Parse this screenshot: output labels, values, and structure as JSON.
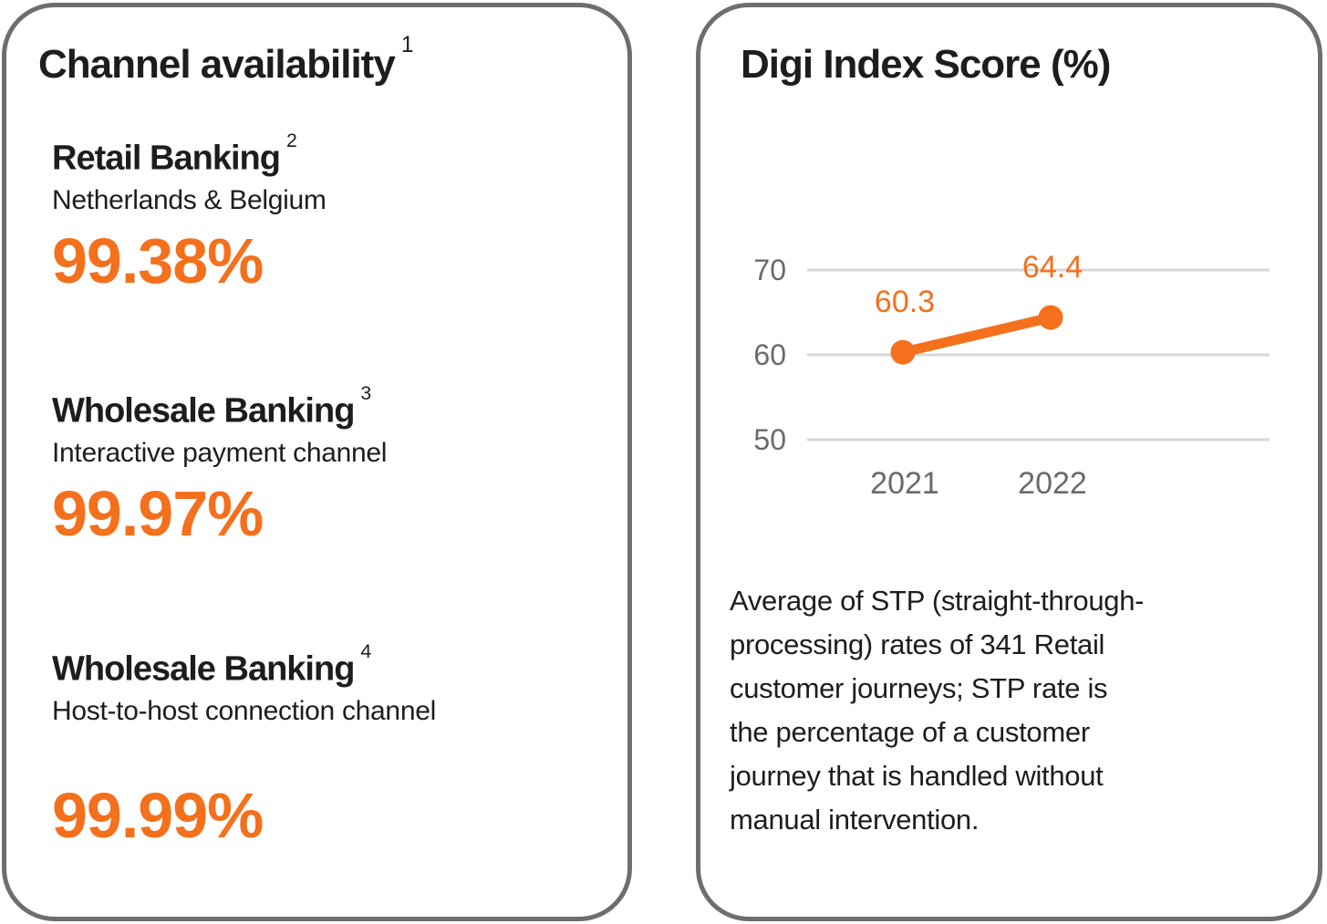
{
  "colors": {
    "accent": "#f4701d",
    "text": "#1d1d1b",
    "muted": "#6a6a6a",
    "gridline": "#d8d8d8",
    "card_border": "#6e6e6e",
    "card_background": "#ffffff"
  },
  "left_card": {
    "title": "Channel availability",
    "title_footnote": "1",
    "stats": [
      {
        "heading": "Retail Banking",
        "footnote": "2",
        "subtitle": "Netherlands & Belgium",
        "value": "99.38%"
      },
      {
        "heading": "Wholesale Banking",
        "footnote": "3",
        "subtitle": "Interactive payment channel",
        "value": "99.97%"
      },
      {
        "heading": "Wholesale Banking",
        "footnote": "4",
        "subtitle": "Host-to-host connection channel",
        "value": "99.99%"
      }
    ]
  },
  "right_card": {
    "title": "Digi Index Score (%)",
    "description": "Average of STP (straight-through-\nprocessing) rates of 341 Retail\ncustomer journeys; STP rate is\nthe percentage of a customer\njourney that is handled without\nmanual intervention."
  },
  "chart_data": {
    "type": "line",
    "title": "Digi Index Score (%)",
    "categories": [
      "2021",
      "2022"
    ],
    "series": [
      {
        "name": "Digi Index Score",
        "values": [
          60.3,
          64.4
        ]
      }
    ],
    "data_labels": [
      "60.3",
      "64.4"
    ],
    "yticks": [
      70,
      60,
      50
    ],
    "ylim": [
      45,
      73
    ],
    "xlabel": "",
    "ylabel": "",
    "grid": "horizontal",
    "legend": false,
    "line_color": "#f4701d",
    "gridline_color": "#d8d8d8",
    "axis_text_color": "#6a6a6a"
  }
}
